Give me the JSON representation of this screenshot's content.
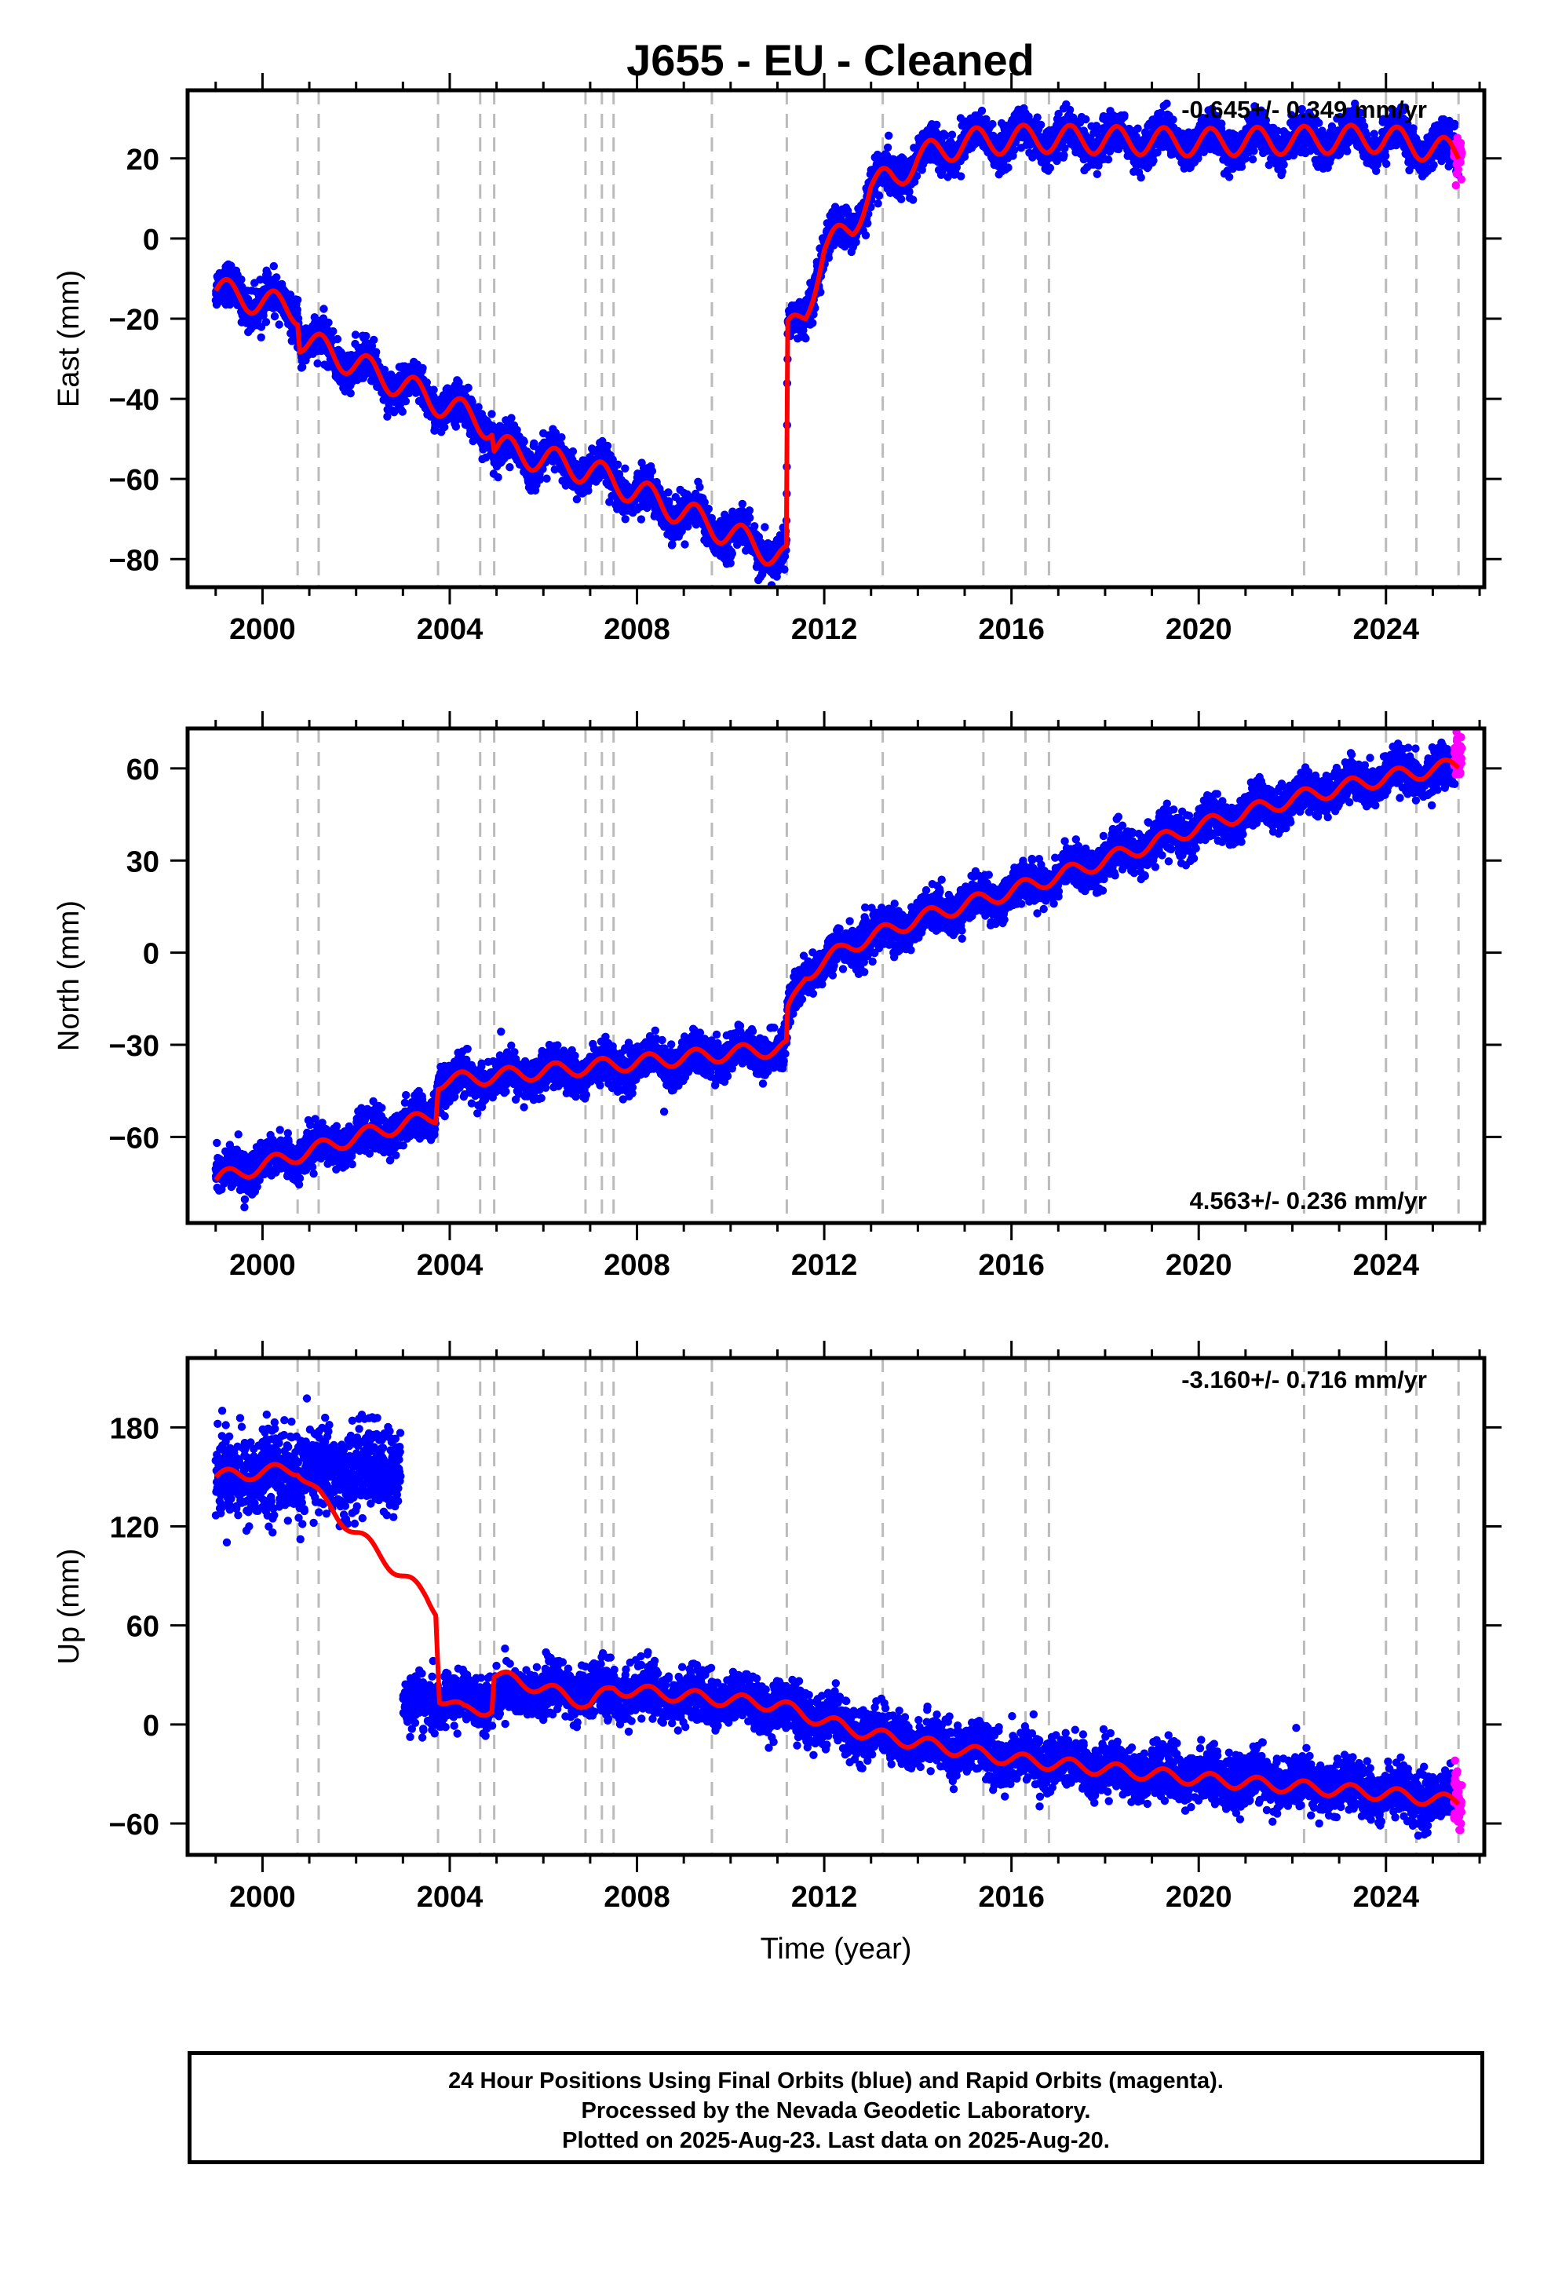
{
  "title": "J655  - EU - Cleaned",
  "footer": {
    "line1": "24 Hour Positions Using Final Orbits (blue) and Rapid Orbits (magenta).",
    "line2": "Processed by the Nevada Geodetic Laboratory.",
    "line3": "Plotted on 2025-Aug-23. Last data on 2025-Aug-20."
  },
  "colors": {
    "final_orbits": "#0000ff",
    "rapid_orbits": "#ff00ff",
    "model": "#ff0000",
    "event_lines": "#bbbbbb"
  },
  "chart_data": [
    {
      "type": "scatter",
      "panel": "east",
      "ylabel": "East (mm)",
      "xlabel": "",
      "rate_text": "-0.645+/- 0.349 mm/yr",
      "xlim": [
        1998.4,
        2026.1
      ],
      "ylim": [
        -87,
        37
      ],
      "xticks": [
        2000,
        2004,
        2008,
        2012,
        2016,
        2020,
        2024
      ],
      "yticks": [
        -80,
        -60,
        -40,
        -20,
        0,
        20
      ],
      "event_lines": [
        2000.75,
        2001.2,
        2003.75,
        2004.65,
        2004.95,
        2006.9,
        2007.25,
        2007.5,
        2009.6,
        2011.2,
        2013.25,
        2015.4,
        2016.3,
        2016.8,
        2022.25,
        2024.0,
        2024.65,
        2025.55
      ],
      "series": [
        {
          "name": "Final Orbits",
          "color": "#0000ff",
          "trend": [
            [
              1999.0,
              -13
            ],
            [
              2000.75,
              -18
            ],
            [
              2000.8,
              -25
            ],
            [
              2004.9,
              -47
            ],
            [
              2004.95,
              -52
            ],
            [
              2007.0,
              -58
            ],
            [
              2011.19,
              -80
            ],
            [
              2011.22,
              -24
            ],
            [
              2011.6,
              -18
            ],
            [
              2012.0,
              -3
            ],
            [
              2012.6,
              3
            ],
            [
              2013.0,
              13
            ],
            [
              2013.5,
              15
            ],
            [
              2014.0,
              20
            ],
            [
              2015.0,
              24
            ],
            [
              2016.5,
              25
            ],
            [
              2020.0,
              24
            ],
            [
              2024.0,
              25
            ],
            [
              2025.55,
              21
            ]
          ],
          "seasonal_amplitude": 3,
          "scatter_sd": 2.4
        },
        {
          "name": "Rapid Orbits",
          "color": "#ff00ff",
          "trend": [
            [
              2025.45,
              22
            ],
            [
              2025.62,
              21
            ]
          ],
          "seasonal_amplitude": 0,
          "scatter_sd": 3
        }
      ],
      "model": [
        [
          1999.0,
          -13
        ],
        [
          2000.75,
          -18
        ],
        [
          2000.8,
          -25
        ],
        [
          2004.9,
          -47
        ],
        [
          2004.95,
          -52
        ],
        [
          2007.0,
          -58
        ],
        [
          2011.19,
          -80
        ],
        [
          2011.22,
          -24
        ],
        [
          2011.6,
          -18
        ],
        [
          2012.0,
          -3
        ],
        [
          2012.6,
          3
        ],
        [
          2013.0,
          13
        ],
        [
          2013.5,
          15
        ],
        [
          2014.0,
          20
        ],
        [
          2015.0,
          24
        ],
        [
          2016.5,
          25
        ],
        [
          2020.0,
          24
        ],
        [
          2024.0,
          25
        ],
        [
          2025.55,
          21
        ]
      ],
      "model_seasonal_amplitude": 3.5
    },
    {
      "type": "scatter",
      "panel": "north",
      "ylabel": "North (mm)",
      "xlabel": "",
      "rate_text": "4.563+/- 0.236 mm/yr",
      "xlim": [
        1998.4,
        2026.1
      ],
      "ylim": [
        -88,
        73
      ],
      "xticks": [
        2000,
        2004,
        2008,
        2012,
        2016,
        2020,
        2024
      ],
      "yticks": [
        -60,
        -30,
        0,
        30,
        60
      ],
      "event_lines": [
        2000.75,
        2001.2,
        2003.75,
        2004.65,
        2004.95,
        2006.9,
        2007.25,
        2007.5,
        2009.6,
        2011.2,
        2013.25,
        2015.4,
        2016.3,
        2016.8,
        2022.25,
        2024.0,
        2024.65,
        2025.55
      ],
      "series": [
        {
          "name": "Final Orbits",
          "color": "#0000ff",
          "trend": [
            [
              1999.0,
              -73
            ],
            [
              2002.0,
              -60
            ],
            [
              2003.0,
              -57
            ],
            [
              2003.7,
              -52
            ],
            [
              2003.75,
              -43
            ],
            [
              2011.19,
              -31
            ],
            [
              2011.22,
              -20
            ],
            [
              2011.6,
              -7
            ],
            [
              2012.5,
              2
            ],
            [
              2014.0,
              11
            ],
            [
              2016.0,
              20
            ],
            [
              2018.0,
              30
            ],
            [
              2020.0,
              41
            ],
            [
              2022.0,
              50
            ],
            [
              2024.0,
              57
            ],
            [
              2025.5,
              60
            ]
          ],
          "seasonal_amplitude": 2.5,
          "scatter_sd": 3.2
        },
        {
          "name": "Rapid Orbits",
          "color": "#ff00ff",
          "trend": [
            [
              2025.45,
              63
            ],
            [
              2025.62,
              67
            ]
          ],
          "seasonal_amplitude": 0,
          "scatter_sd": 3
        }
      ],
      "model": [
        [
          1999.0,
          -74
        ],
        [
          2002.0,
          -60
        ],
        [
          2003.0,
          -56
        ],
        [
          2003.7,
          -53
        ],
        [
          2003.75,
          -42
        ],
        [
          2011.19,
          -31
        ],
        [
          2011.22,
          -20
        ],
        [
          2011.6,
          -7
        ],
        [
          2012.5,
          2
        ],
        [
          2014.0,
          11
        ],
        [
          2016.0,
          20
        ],
        [
          2018.0,
          30
        ],
        [
          2020.0,
          41
        ],
        [
          2022.0,
          50
        ],
        [
          2024.0,
          57
        ],
        [
          2025.55,
          61
        ]
      ],
      "model_seasonal_amplitude": 2.5
    },
    {
      "type": "scatter",
      "panel": "up",
      "ylabel": "Up (mm)",
      "xlabel": "Time (year)",
      "rate_text": "-3.160+/- 0.716 mm/yr",
      "xlim": [
        1998.4,
        2026.1
      ],
      "ylim": [
        -79,
        222
      ],
      "xticks": [
        2000,
        2004,
        2008,
        2012,
        2016,
        2020,
        2024
      ],
      "yticks": [
        -60,
        0,
        60,
        120,
        180
      ],
      "event_lines": [
        2000.75,
        2001.2,
        2003.75,
        2004.65,
        2004.95,
        2006.9,
        2007.25,
        2007.5,
        2009.6,
        2011.2,
        2013.25,
        2015.4,
        2016.3,
        2016.8,
        2022.25,
        2024.0,
        2024.65,
        2025.55
      ],
      "series": [
        {
          "name": "Final Orbits",
          "color": "#0000ff",
          "segments": [
            {
              "trend": [
                [
                  1999.0,
                  150
                ],
                [
                  2002.95,
                  155
                ]
              ],
              "scatter_sd": 13
            },
            {
              "trend": [
                [
                  2003.0,
                  12
                ],
                [
                  2004.0,
                  14
                ],
                [
                  2006.0,
                  20
                ],
                [
                  2008.0,
                  20
                ],
                [
                  2011.0,
                  11
                ],
                [
                  2012.0,
                  2
                ],
                [
                  2013.0,
                  -6
                ],
                [
                  2016.0,
                  -20
                ],
                [
                  2020.0,
                  -32
                ],
                [
                  2024.0,
                  -40
                ],
                [
                  2025.5,
                  -47
                ]
              ],
              "scatter_sd": 7.5
            }
          ],
          "seasonal_amplitude": 4
        },
        {
          "name": "Rapid Orbits",
          "color": "#ff00ff",
          "trend": [
            [
              2025.45,
              -45
            ],
            [
              2025.62,
              -45
            ]
          ],
          "seasonal_amplitude": 0,
          "scatter_sd": 10
        }
      ],
      "model": [
        [
          1999.0,
          150
        ],
        [
          2000.75,
          155
        ],
        [
          2001.3,
          135
        ],
        [
          2002.5,
          103
        ],
        [
          2003.5,
          77
        ],
        [
          2003.7,
          70
        ],
        [
          2003.78,
          17
        ],
        [
          2004.3,
          8
        ],
        [
          2004.9,
          10
        ],
        [
          2004.95,
          30
        ],
        [
          2006.0,
          22
        ],
        [
          2007.0,
          12
        ],
        [
          2007.5,
          22
        ],
        [
          2008.0,
          20
        ],
        [
          2011.0,
          12
        ],
        [
          2012.0,
          2
        ],
        [
          2013.0,
          -6
        ],
        [
          2016.0,
          -21
        ],
        [
          2020.0,
          -33
        ],
        [
          2024.0,
          -42
        ],
        [
          2025.55,
          -47
        ]
      ],
      "model_seasonal_amplitude": 4
    }
  ]
}
